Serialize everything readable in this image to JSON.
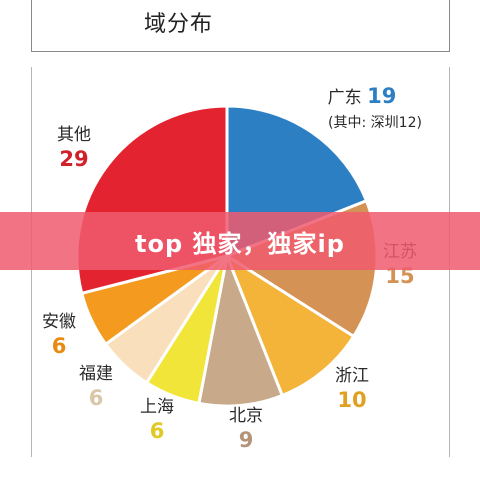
{
  "header": {
    "title": "域分布"
  },
  "banner": {
    "text": "top 独家，独家ip"
  },
  "chart_data": {
    "type": "pie",
    "title": "域分布",
    "slices": [
      {
        "label": "广东",
        "value": 19,
        "sub_label": "(其中: 深圳12)",
        "color": "#2d7fc4",
        "label_color": "#2d7fc4"
      },
      {
        "label": "江苏",
        "value": 15,
        "color": "#d49255",
        "label_color": "#d49255"
      },
      {
        "label": "浙江",
        "value": 10,
        "color": "#f4b43a",
        "label_color": "#e0a020"
      },
      {
        "label": "北京",
        "value": 9,
        "color": "#c8a98a",
        "label_color": "#b39478"
      },
      {
        "label": "上海",
        "value": 6,
        "color": "#f2e53a",
        "label_color": "#e2c822"
      },
      {
        "label": "福建",
        "value": 6,
        "color": "#f9dfbb",
        "label_color": "#d9c7a8"
      },
      {
        "label": "安徽",
        "value": 6,
        "color": "#f39a1f",
        "label_color": "#e88a12"
      },
      {
        "label": "其他",
        "value": 29,
        "color": "#e3232f",
        "label_color": "#d0212b"
      }
    ]
  }
}
